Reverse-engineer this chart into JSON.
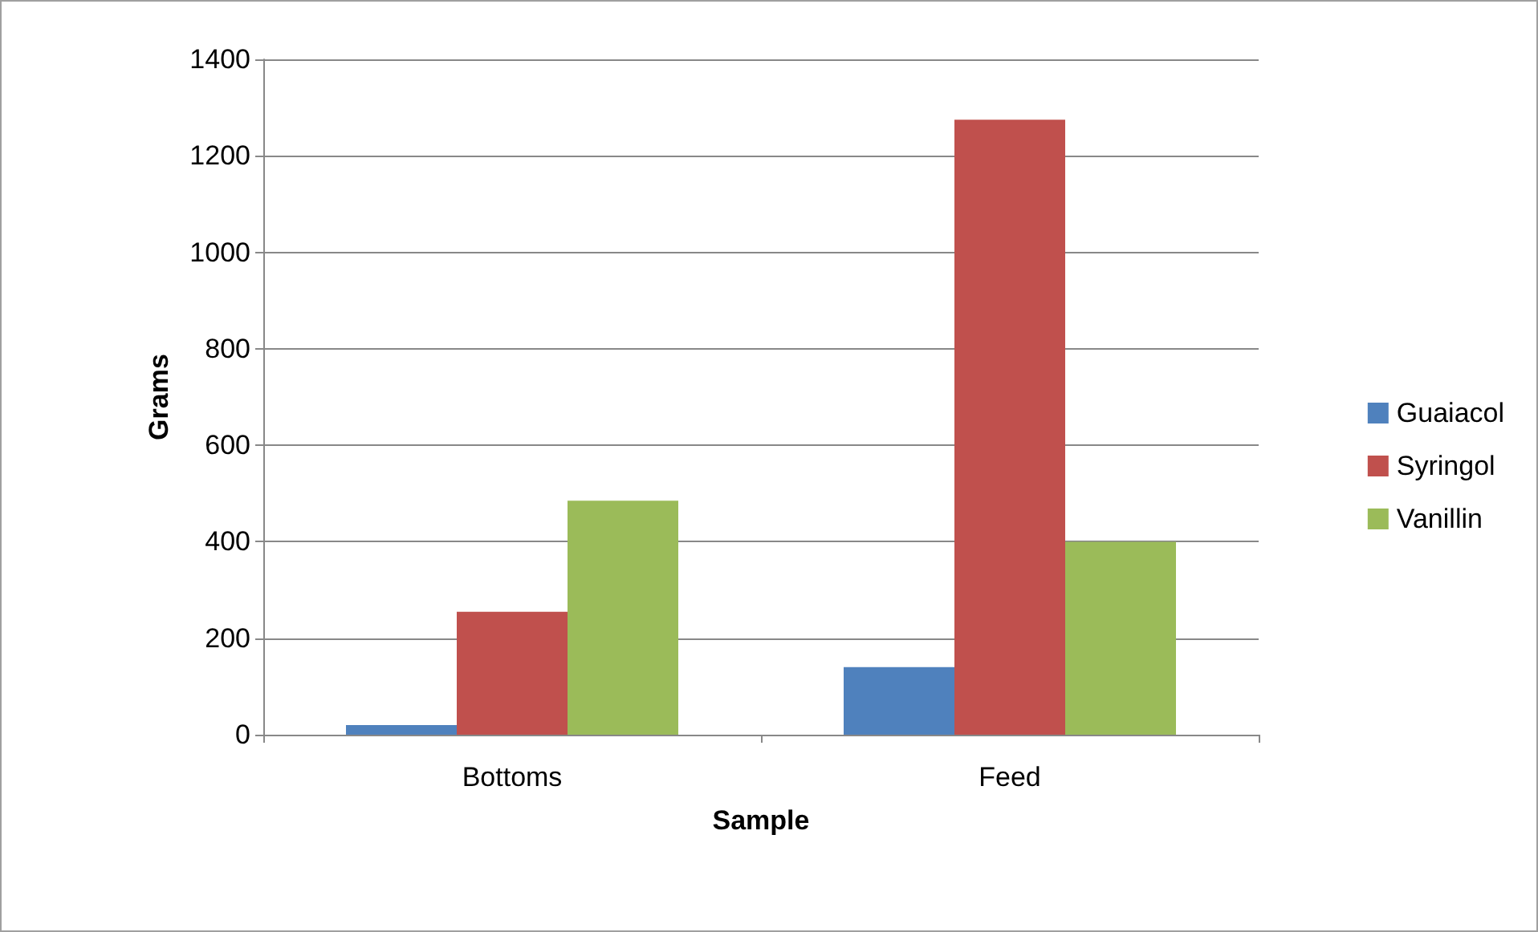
{
  "chart_data": {
    "type": "bar",
    "xlabel": "Sample",
    "ylabel": "Grams",
    "categories": [
      "Bottoms",
      "Feed"
    ],
    "series": [
      {
        "name": "Guaiacol",
        "color": "#4f81bd",
        "values": [
          20,
          140
        ]
      },
      {
        "name": "Syringol",
        "color": "#c0504d",
        "values": [
          255,
          1275
        ]
      },
      {
        "name": "Vanillin",
        "color": "#9bbb59",
        "values": [
          485,
          400
        ]
      }
    ],
    "ylim": [
      0,
      1400
    ],
    "yticks": [
      0,
      200,
      400,
      600,
      800,
      1000,
      1200,
      1400
    ],
    "grid": "y",
    "legend": "right"
  }
}
